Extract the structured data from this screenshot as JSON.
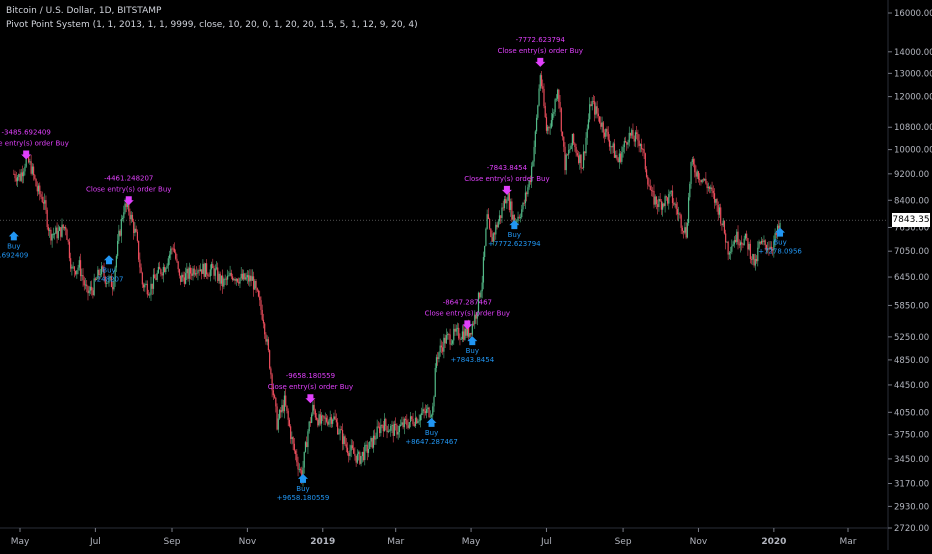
{
  "header": {
    "title": "Bitcoin / U.S. Dollar, 1D, BITSTAMP",
    "indicator": "Pivot Point System (1, 1, 2013, 1, 1, 9999, close, 10, 20, 0, 1, 20, 20, 1.5, 5, 1, 12, 9, 20, 4)"
  },
  "colors": {
    "background": "#000000",
    "up_candle": "#53b987",
    "down_candle": "#eb4d5c",
    "sell_text": "#e040fb",
    "buy_text": "#2196f3",
    "axis_text": "#b2b5be",
    "price_line": "#808080"
  },
  "chart_data": {
    "type": "candlestick",
    "instrument": "Bitcoin / U.S. Dollar",
    "interval": "1D",
    "exchange": "BITSTAMP",
    "y_scale": "log",
    "ylim": [
      2720,
      16000
    ],
    "y_ticks": [
      "16000.00",
      "14000.00",
      "13000.00",
      "12000.00",
      "10800.00",
      "10000.00",
      "9200.00",
      "8400.00",
      "7650.00",
      "7050.00",
      "6450.00",
      "5850.00",
      "5250.00",
      "4850.00",
      "4450.00",
      "4050.00",
      "3750.00",
      "3450.00",
      "3170.00",
      "2930.00",
      "2720.00"
    ],
    "x_ticks": [
      "May",
      "Jul",
      "Sep",
      "Nov",
      "2019",
      "Mar",
      "May",
      "Jul",
      "Sep",
      "Nov",
      "2020",
      "Mar"
    ],
    "x_ticks_bold": [
      "2019",
      "2020"
    ],
    "last_price": "7843.35",
    "close_series": [
      {
        "x": "2018-04-26",
        "y": 9200
      },
      {
        "x": "2018-05-01",
        "y": 9100
      },
      {
        "x": "2018-05-06",
        "y": 9700
      },
      {
        "x": "2018-05-10",
        "y": 9400
      },
      {
        "x": "2018-05-15",
        "y": 8700
      },
      {
        "x": "2018-05-20",
        "y": 8400
      },
      {
        "x": "2018-05-25",
        "y": 7500
      },
      {
        "x": "2018-06-01",
        "y": 7500
      },
      {
        "x": "2018-06-07",
        "y": 7700
      },
      {
        "x": "2018-06-12",
        "y": 6600
      },
      {
        "x": "2018-06-18",
        "y": 6700
      },
      {
        "x": "2018-06-24",
        "y": 6100
      },
      {
        "x": "2018-06-29",
        "y": 6200
      },
      {
        "x": "2018-07-05",
        "y": 6600
      },
      {
        "x": "2018-07-10",
        "y": 6400
      },
      {
        "x": "2018-07-15",
        "y": 6300
      },
      {
        "x": "2018-07-20",
        "y": 7400
      },
      {
        "x": "2018-07-24",
        "y": 8200
      },
      {
        "x": "2018-07-28",
        "y": 8150
      },
      {
        "x": "2018-08-03",
        "y": 7400
      },
      {
        "x": "2018-08-08",
        "y": 6300
      },
      {
        "x": "2018-08-14",
        "y": 6200
      },
      {
        "x": "2018-08-20",
        "y": 6500
      },
      {
        "x": "2018-08-26",
        "y": 6700
      },
      {
        "x": "2018-09-02",
        "y": 7200
      },
      {
        "x": "2018-09-07",
        "y": 6400
      },
      {
        "x": "2018-09-14",
        "y": 6500
      },
      {
        "x": "2018-09-21",
        "y": 6700
      },
      {
        "x": "2018-09-28",
        "y": 6600
      },
      {
        "x": "2018-10-05",
        "y": 6600
      },
      {
        "x": "2018-10-12",
        "y": 6300
      },
      {
        "x": "2018-10-20",
        "y": 6500
      },
      {
        "x": "2018-10-28",
        "y": 6400
      },
      {
        "x": "2018-11-05",
        "y": 6400
      },
      {
        "x": "2018-11-14",
        "y": 5600
      },
      {
        "x": "2018-11-19",
        "y": 4800
      },
      {
        "x": "2018-11-25",
        "y": 3900
      },
      {
        "x": "2018-12-01",
        "y": 4200
      },
      {
        "x": "2018-12-08",
        "y": 3600
      },
      {
        "x": "2018-12-15",
        "y": 3250
      },
      {
        "x": "2018-12-20",
        "y": 3800
      },
      {
        "x": "2018-12-24",
        "y": 4100
      },
      {
        "x": "2018-12-30",
        "y": 3900
      },
      {
        "x": "2019-01-09",
        "y": 4000
      },
      {
        "x": "2019-01-20",
        "y": 3600
      },
      {
        "x": "2019-01-30",
        "y": 3450
      },
      {
        "x": "2019-02-08",
        "y": 3600
      },
      {
        "x": "2019-02-18",
        "y": 3900
      },
      {
        "x": "2019-02-28",
        "y": 3800
      },
      {
        "x": "2019-03-10",
        "y": 3900
      },
      {
        "x": "2019-03-20",
        "y": 4000
      },
      {
        "x": "2019-03-31",
        "y": 4100
      },
      {
        "x": "2019-04-03",
        "y": 4900
      },
      {
        "x": "2019-04-10",
        "y": 5200
      },
      {
        "x": "2019-04-20",
        "y": 5300
      },
      {
        "x": "2019-04-30",
        "y": 5350
      },
      {
        "x": "2019-05-05",
        "y": 5700
      },
      {
        "x": "2019-05-10",
        "y": 6400
      },
      {
        "x": "2019-05-14",
        "y": 7900
      },
      {
        "x": "2019-05-17",
        "y": 7300
      },
      {
        "x": "2019-05-25",
        "y": 8000
      },
      {
        "x": "2019-05-30",
        "y": 8600
      },
      {
        "x": "2019-06-05",
        "y": 7800
      },
      {
        "x": "2019-06-12",
        "y": 8200
      },
      {
        "x": "2019-06-18",
        "y": 9100
      },
      {
        "x": "2019-06-22",
        "y": 10500
      },
      {
        "x": "2019-06-26",
        "y": 13000
      },
      {
        "x": "2019-07-01",
        "y": 10700
      },
      {
        "x": "2019-07-06",
        "y": 11200
      },
      {
        "x": "2019-07-10",
        "y": 12500
      },
      {
        "x": "2019-07-16",
        "y": 9500
      },
      {
        "x": "2019-07-22",
        "y": 10300
      },
      {
        "x": "2019-07-30",
        "y": 9500
      },
      {
        "x": "2019-08-06",
        "y": 11800
      },
      {
        "x": "2019-08-12",
        "y": 11200
      },
      {
        "x": "2019-08-20",
        "y": 10400
      },
      {
        "x": "2019-08-28",
        "y": 9600
      },
      {
        "x": "2019-09-05",
        "y": 10500
      },
      {
        "x": "2019-09-15",
        "y": 10300
      },
      {
        "x": "2019-09-24",
        "y": 8500
      },
      {
        "x": "2019-09-30",
        "y": 8300
      },
      {
        "x": "2019-10-10",
        "y": 8500
      },
      {
        "x": "2019-10-22",
        "y": 7500
      },
      {
        "x": "2019-10-26",
        "y": 9500
      },
      {
        "x": "2019-11-01",
        "y": 9200
      },
      {
        "x": "2019-11-09",
        "y": 8800
      },
      {
        "x": "2019-11-18",
        "y": 8100
      },
      {
        "x": "2019-11-25",
        "y": 7100
      },
      {
        "x": "2019-12-01",
        "y": 7400
      },
      {
        "x": "2019-12-10",
        "y": 7300
      },
      {
        "x": "2019-12-17",
        "y": 6700
      },
      {
        "x": "2019-12-20",
        "y": 7200
      },
      {
        "x": "2019-12-31",
        "y": 7200
      },
      {
        "x": "2020-01-06",
        "y": 7700
      }
    ],
    "annotations": [
      {
        "kind": "sell",
        "date": "2018-05-06",
        "price": 9600,
        "value": "-3485.692409",
        "label": "Close entry(s) order Buy"
      },
      {
        "kind": "buy",
        "date": "2018-04-26",
        "price": 7600,
        "label": "Buy",
        "value": ".692409"
      },
      {
        "kind": "sell",
        "date": "2018-07-28",
        "price": 8200,
        "value": "-4461.248207",
        "label": "Close entry(s) order Buy"
      },
      {
        "kind": "buy",
        "date": "2018-07-12",
        "price": 7000,
        "label": "Buy",
        "value": ".248207"
      },
      {
        "kind": "sell",
        "date": "2018-12-22",
        "price": 4150,
        "value": "-9658.180559",
        "label": "Close entry(s) order Buy"
      },
      {
        "kind": "buy",
        "date": "2018-12-16",
        "price": 3300,
        "label": "Buy",
        "value": "+9658.180559"
      },
      {
        "kind": "sell",
        "date": "2019-04-28",
        "price": 5350,
        "value": "-8647.287467",
        "label": "Close entry(s) order Buy"
      },
      {
        "kind": "buy",
        "date": "2019-03-30",
        "price": 4000,
        "label": "Buy",
        "value": "+8647.287467"
      },
      {
        "kind": "sell",
        "date": "2019-05-30",
        "price": 8500,
        "value": "-7843.8454",
        "label": "Close entry(s) order Buy"
      },
      {
        "kind": "buy",
        "date": "2019-05-02",
        "price": 5300,
        "label": "Buy",
        "value": "+7843.8454"
      },
      {
        "kind": "sell",
        "date": "2019-06-26",
        "price": 13200,
        "value": "-7772.623794",
        "label": "Close entry(s) order Buy"
      },
      {
        "kind": "buy",
        "date": "2019-06-05",
        "price": 7900,
        "label": "Buy",
        "value": "+7772.623794"
      },
      {
        "kind": "buy",
        "date": "2020-01-06",
        "price": 7700,
        "label": "Buy",
        "value": "+7278.0956"
      }
    ]
  }
}
